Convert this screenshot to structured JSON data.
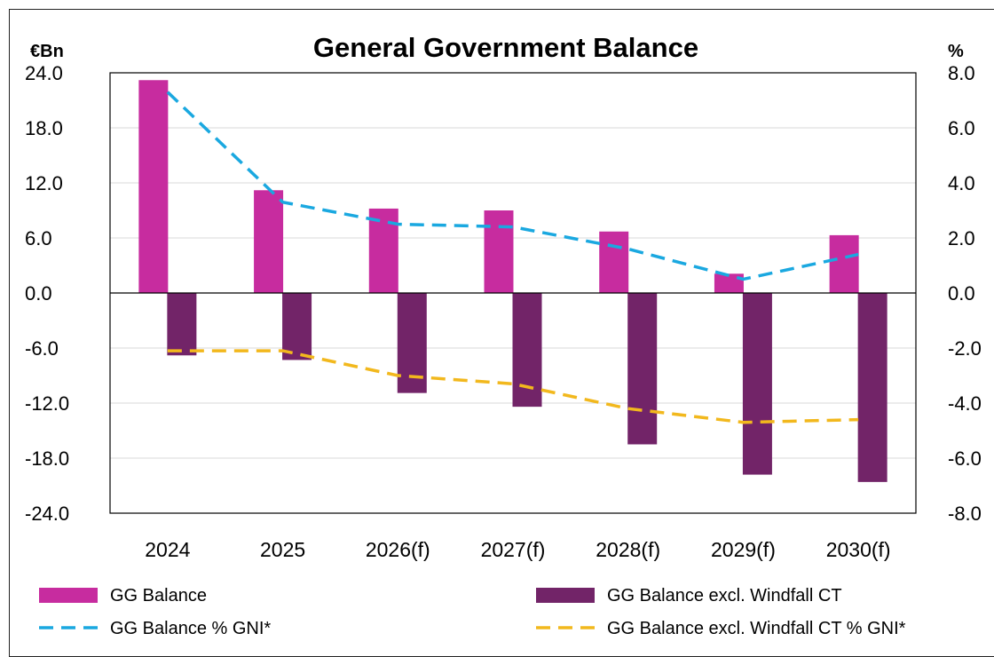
{
  "chart_data": {
    "type": "bar",
    "title": "General Government Balance",
    "left_axis_unit": "€Bn",
    "right_axis_unit": "%",
    "categories": [
      "2024",
      "2025",
      "2026(f)",
      "2027(f)",
      "2028(f)",
      "2029(f)",
      "2030(f)"
    ],
    "left_ylim": [
      -24.0,
      24.0
    ],
    "left_ticks": [
      "24.0",
      "18.0",
      "12.0",
      "6.0",
      "0.0",
      "-6.0",
      "-12.0",
      "-18.0",
      "-24.0"
    ],
    "right_ylim": [
      -8.0,
      8.0
    ],
    "right_ticks": [
      "8.0",
      "6.0",
      "4.0",
      "2.0",
      "0.0",
      "-2.0",
      "-4.0",
      "-6.0",
      "-8.0"
    ],
    "grid": true,
    "legend_position": "bottom",
    "series": [
      {
        "name": "GG Balance",
        "type": "bar",
        "axis": "left",
        "color": "#c72c9f",
        "values": [
          23.2,
          11.2,
          9.2,
          9.0,
          6.7,
          2.1,
          6.3
        ]
      },
      {
        "name": "GG Balance excl. Windfall CT",
        "type": "bar",
        "axis": "left",
        "color": "#722468",
        "values": [
          -6.8,
          -7.3,
          -10.9,
          -12.4,
          -16.5,
          -19.8,
          -20.6
        ]
      },
      {
        "name": "GG Balance % GNI*",
        "type": "line",
        "style": "dashed",
        "axis": "right",
        "color": "#1aa8e0",
        "values": [
          7.3,
          3.3,
          2.5,
          2.4,
          1.6,
          0.5,
          1.4
        ]
      },
      {
        "name": "GG Balance excl. Windfall CT % GNI*",
        "type": "line",
        "style": "dashed",
        "axis": "right",
        "color": "#f2b81d",
        "values": [
          -2.1,
          -2.1,
          -3.0,
          -3.3,
          -4.2,
          -4.7,
          -4.6
        ]
      }
    ]
  }
}
